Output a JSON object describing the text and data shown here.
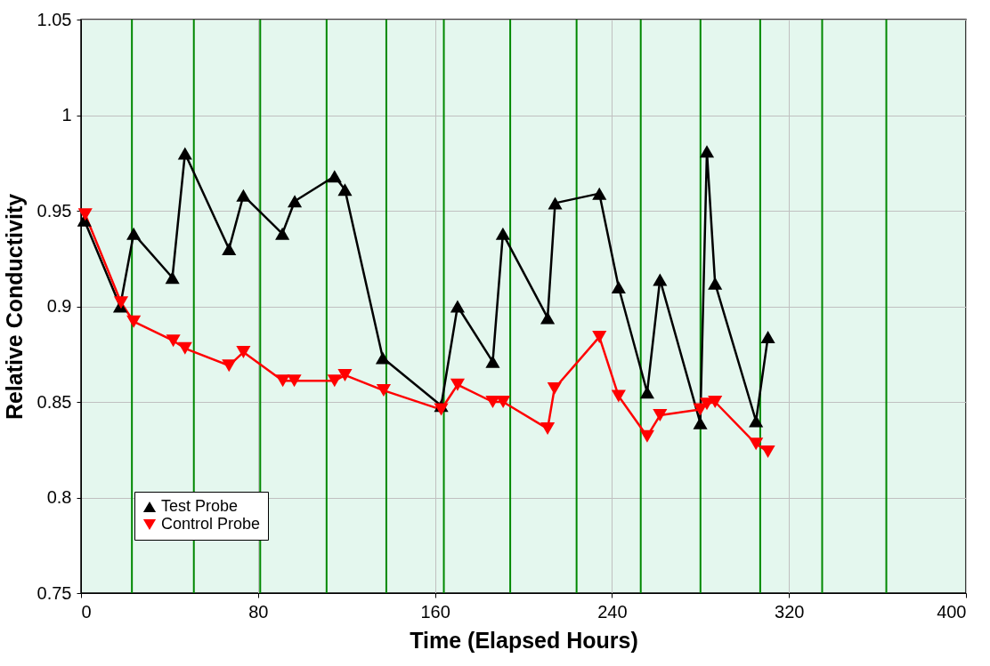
{
  "chart_data": {
    "type": "line",
    "xlabel": "Time (Elapsed Hours)",
    "ylabel": "Relative Conductivity",
    "xlim": [
      0,
      400
    ],
    "xticks": [
      0,
      80,
      160,
      240,
      320,
      400
    ],
    "ylim": [
      0.75,
      1.05
    ],
    "yticks": [
      0.75,
      0.8,
      0.85,
      0.9,
      0.95,
      1,
      1.05
    ],
    "grid": true,
    "legend": "bottom left",
    "marker": "triangle",
    "series": [
      {
        "name": "Test Probe",
        "color": "#000000",
        "x": [
          1.5,
          17.7,
          23.8,
          41.3,
          47,
          66.9,
          73.4,
          91,
          96.6,
          114.6,
          119.3,
          136.4,
          162.8,
          170.2,
          186.1,
          190.7,
          210.9,
          214.3,
          234.3,
          243,
          255.9,
          261.7,
          279.9,
          282.9,
          286.6,
          305.1,
          310.5
        ],
        "values": [
          0.945,
          0.9,
          0.938,
          0.915,
          0.98,
          0.93,
          0.958,
          0.938,
          0.955,
          0.968,
          0.961,
          0.873,
          0.848,
          0.9,
          0.871,
          0.938,
          0.894,
          0.954,
          0.959,
          0.91,
          0.855,
          0.914,
          0.839,
          0.981,
          0.912,
          0.84,
          0.884
        ]
      },
      {
        "name": "Control Probe",
        "color": "#ff0000",
        "x": [
          1.9,
          18.1,
          23.8,
          41.7,
          47,
          66.9,
          73.4,
          91.2,
          96.4,
          114.6,
          119.3,
          136.8,
          162.8,
          170.2,
          186.1,
          190.8,
          210.9,
          214,
          234.3,
          243,
          255.9,
          261.7,
          279.9,
          282.9,
          286.6,
          305.1,
          310.5
        ],
        "values": [
          0.948,
          0.902,
          0.892,
          0.882,
          0.878,
          0.869,
          0.876,
          0.861,
          0.861,
          0.861,
          0.864,
          0.856,
          0.846,
          0.859,
          0.85,
          0.85,
          0.836,
          0.857,
          0.884,
          0.853,
          0.832,
          0.843,
          0.846,
          0.849,
          0.85,
          0.828,
          0.824
        ]
      }
    ],
    "ref_lines": [
      {
        "axis": "x",
        "value": 23,
        "color": "#008800"
      },
      {
        "axis": "x",
        "value": 51,
        "color": "#008800"
      },
      {
        "axis": "x",
        "value": 81,
        "color": "#008800"
      },
      {
        "axis": "x",
        "value": 111,
        "color": "#008800"
      },
      {
        "axis": "x",
        "value": 138,
        "color": "#008800"
      },
      {
        "axis": "x",
        "value": 164,
        "color": "#008800"
      },
      {
        "axis": "x",
        "value": 194,
        "color": "#008800"
      },
      {
        "axis": "x",
        "value": 224,
        "color": "#008800"
      },
      {
        "axis": "x",
        "value": 253,
        "color": "#008800"
      },
      {
        "axis": "x",
        "value": 280,
        "color": "#008800"
      },
      {
        "axis": "x",
        "value": 307,
        "color": "#008800"
      },
      {
        "axis": "x",
        "value": 335,
        "color": "#008800"
      },
      {
        "axis": "x",
        "value": 364,
        "color": "#008800"
      }
    ]
  }
}
